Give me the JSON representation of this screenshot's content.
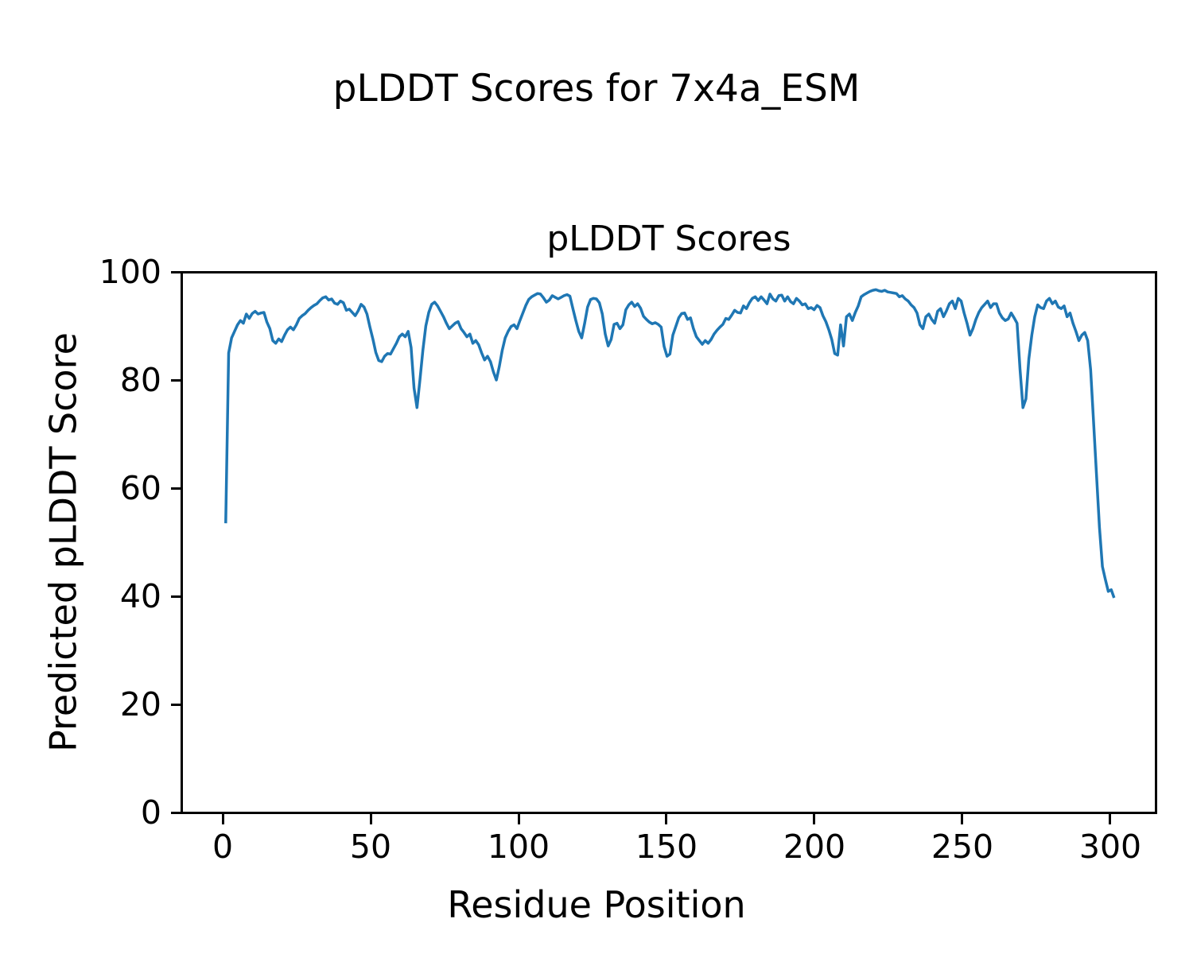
{
  "figure": {
    "suptitle": "pLDDT Scores for 7x4a_ESM"
  },
  "chart_data": {
    "type": "line",
    "title": "pLDDT Scores",
    "xlabel": "Residue Position",
    "ylabel": "Predicted pLDDT Score",
    "x_ticks": [
      0,
      50,
      100,
      150,
      200,
      250,
      300
    ],
    "y_ticks": [
      0,
      20,
      40,
      60,
      80,
      100
    ],
    "xlim": [
      -14.1,
      317.1
    ],
    "ylim": [
      0,
      100
    ],
    "grid": false,
    "legend": "none",
    "line_width": 3.5,
    "series": [
      {
        "name": "pLDDT",
        "color": "#1f77b4",
        "x_start": 1,
        "x_step": 1,
        "y": [
          53.5,
          85.0,
          87.8,
          89.0,
          90.2,
          91.0,
          90.5,
          92.2,
          91.4,
          92.3,
          92.7,
          92.2,
          92.4,
          92.5,
          90.7,
          89.5,
          87.3,
          86.8,
          87.6,
          87.1,
          88.3,
          89.3,
          89.8,
          89.3,
          90.2,
          91.4,
          91.9,
          92.3,
          92.9,
          93.4,
          93.8,
          94.1,
          94.7,
          95.2,
          95.4,
          94.8,
          95.0,
          94.2,
          94.0,
          94.6,
          94.3,
          92.9,
          93.1,
          92.5,
          91.9,
          92.8,
          94.0,
          93.5,
          92.2,
          89.8,
          87.6,
          85.1,
          83.6,
          83.4,
          84.4,
          84.9,
          84.8,
          85.8,
          86.8,
          88.0,
          88.5,
          88.0,
          89.0,
          86.0,
          78.5,
          74.9,
          80.0,
          85.5,
          90.0,
          92.5,
          94.0,
          94.4,
          93.7,
          92.7,
          91.7,
          90.5,
          89.5,
          90.0,
          90.5,
          90.8,
          89.5,
          88.8,
          88.0,
          88.5,
          86.8,
          87.3,
          86.5,
          85.0,
          83.7,
          84.4,
          83.4,
          81.5,
          80.0,
          82.5,
          85.5,
          87.8,
          89.0,
          89.9,
          90.2,
          89.5,
          91.0,
          92.4,
          93.8,
          94.9,
          95.4,
          95.7,
          96.0,
          95.9,
          95.2,
          94.4,
          94.8,
          95.6,
          95.3,
          95.0,
          95.3,
          95.6,
          95.8,
          95.5,
          93.2,
          91.0,
          89.0,
          87.8,
          90.5,
          93.5,
          94.9,
          95.1,
          95.0,
          94.3,
          92.2,
          88.5,
          86.3,
          87.5,
          90.3,
          90.5,
          89.5,
          90.2,
          93.0,
          93.9,
          94.4,
          93.6,
          94.1,
          93.3,
          91.8,
          91.2,
          90.7,
          90.4,
          90.6,
          90.3,
          89.8,
          86.2,
          84.4,
          84.8,
          88.3,
          89.9,
          91.5,
          92.3,
          92.4,
          91.2,
          91.5,
          89.5,
          88.0,
          87.3,
          86.6,
          87.3,
          86.8,
          87.5,
          88.5,
          89.2,
          89.8,
          90.3,
          91.4,
          91.2,
          92.0,
          92.9,
          92.5,
          92.4,
          93.7,
          93.2,
          94.3,
          95.1,
          95.4,
          94.7,
          95.4,
          94.8,
          94.1,
          95.9,
          95.0,
          94.6,
          95.6,
          95.7,
          94.6,
          95.4,
          94.5,
          94.1,
          95.1,
          94.6,
          93.9,
          94.1,
          93.2,
          93.4,
          93.0,
          93.8,
          93.4,
          91.9,
          90.8,
          89.3,
          87.5,
          84.9,
          84.6,
          90.2,
          86.3,
          91.7,
          92.2,
          91.0,
          92.5,
          93.7,
          95.4,
          95.8,
          96.1,
          96.4,
          96.6,
          96.7,
          96.5,
          96.4,
          96.6,
          96.3,
          96.2,
          96.1,
          96.0,
          95.4,
          95.6,
          95.0,
          94.6,
          93.9,
          93.4,
          92.4,
          90.2,
          89.5,
          91.7,
          92.2,
          91.2,
          90.5,
          92.7,
          93.2,
          91.7,
          92.8,
          94.1,
          94.6,
          93.2,
          95.1,
          94.6,
          92.4,
          90.5,
          88.3,
          89.5,
          91.2,
          92.5,
          93.4,
          94.0,
          94.6,
          93.4,
          94.1,
          94.1,
          92.4,
          91.5,
          91.0,
          91.3,
          92.4,
          91.5,
          90.5,
          82.0,
          74.9,
          76.5,
          83.9,
          88.3,
          91.7,
          93.9,
          93.4,
          93.2,
          94.6,
          95.1,
          94.1,
          94.6,
          93.5,
          93.2,
          93.7,
          91.7,
          92.4,
          90.5,
          89.0,
          87.3,
          88.3,
          88.8,
          87.3,
          81.9,
          72.2,
          62.4,
          52.7,
          45.5,
          43.1,
          40.9,
          41.2,
          39.7
        ]
      }
    ]
  }
}
